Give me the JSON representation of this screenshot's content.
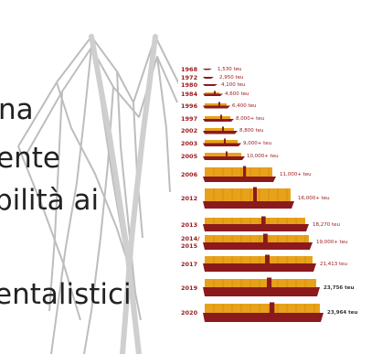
{
  "slide_lines": [
    "na",
    "ente",
    "bilità ai",
    "entalistici"
  ],
  "ships": [
    {
      "year": "1968",
      "teu": "1,530 teu"
    },
    {
      "year": "1972",
      "teu": "2,950 teu"
    },
    {
      "year": "1980",
      "teu": "4,100 teu"
    },
    {
      "year": "1984",
      "teu": "4,600 teu"
    },
    {
      "year": "1996",
      "teu": "6,400 teu"
    },
    {
      "year": "1997",
      "teu": "8,000+ teu"
    },
    {
      "year": "2002",
      "teu": "8,800 teu"
    },
    {
      "year": "2003",
      "teu": "9,000+ teu"
    },
    {
      "year": "2005",
      "teu": "10,000+ teu"
    },
    {
      "year": "2006",
      "teu": "11,000+ teu"
    },
    {
      "year": "2012",
      "teu": "16,000+ teu"
    },
    {
      "year": "2013",
      "teu": "18,270 teu"
    },
    {
      "year": "2014/\n2015",
      "teu": "19,000+ teu"
    },
    {
      "year": "2017",
      "teu": "21,413 teu"
    },
    {
      "year": "2019",
      "teu": "23,756 teu"
    },
    {
      "year": "2020",
      "teu": "23,964 teu"
    }
  ],
  "colors": {
    "hull": "#8b1a1c",
    "containers": "#e8a21a",
    "label": "#9b1d20",
    "watermark": "#b9b9b9"
  },
  "icons": [
    "decorative-line-art"
  ]
}
